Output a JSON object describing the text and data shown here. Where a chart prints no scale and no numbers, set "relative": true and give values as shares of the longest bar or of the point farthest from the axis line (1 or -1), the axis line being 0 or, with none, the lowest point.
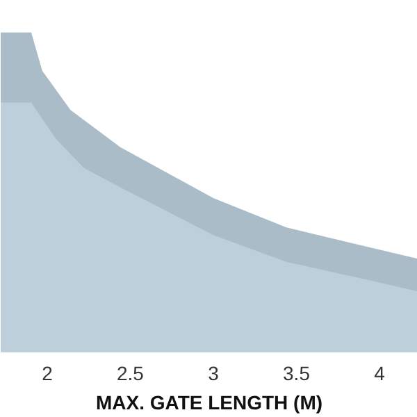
{
  "chart_data": {
    "type": "area",
    "relative": true,
    "xlabel": "MAX. GATE LENGTH (M)",
    "xlim": [
      1.72,
      4.23
    ],
    "xticks": [
      2,
      2.5,
      3,
      3.5,
      4
    ],
    "grid": false,
    "series": [
      {
        "color": "#a9bcc8",
        "x": [
          1.72,
          1.904,
          1.97,
          2.14,
          2.44,
          3.0,
          3.44,
          4.0,
          4.23
        ],
        "values": [
          1,
          1,
          0.88,
          0.757,
          0.64,
          0.48,
          0.388,
          0.318,
          0.29
        ]
      },
      {
        "color": "#bccfda",
        "x": [
          1.72,
          1.904,
          2.05,
          2.22,
          2.44,
          3.0,
          3.44,
          4.0,
          4.23
        ],
        "values": [
          0.78,
          0.78,
          0.668,
          0.575,
          0.514,
          0.364,
          0.28,
          0.215,
          0.187
        ]
      }
    ]
  }
}
